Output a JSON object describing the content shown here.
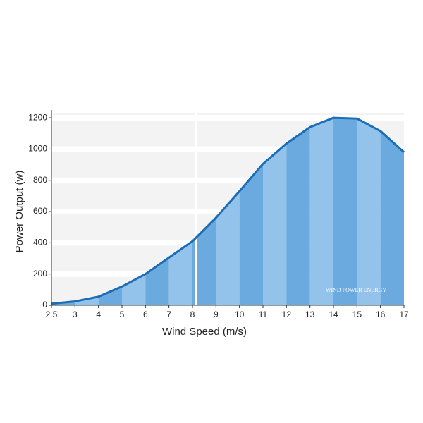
{
  "chart_data": {
    "type": "area",
    "x_label": "Wind Speed (m/s)",
    "y_label": "Power Output (w)",
    "annotation": "WIND POWER ENERGY",
    "categories": [
      "2.5",
      "3",
      "4",
      "5",
      "6",
      "7",
      "8",
      "9",
      "10",
      "11",
      "12",
      "13",
      "14",
      "15",
      "16",
      "17"
    ],
    "values": [
      10,
      25,
      55,
      120,
      200,
      305,
      410,
      560,
      730,
      905,
      1035,
      1140,
      1200,
      1195,
      1115,
      980
    ],
    "color": "#1a6db5",
    "fill_colors": [
      "#6aaade",
      "#93c3ea"
    ],
    "ylim": [
      0,
      1250
    ],
    "yticks": [
      0,
      200,
      400,
      600,
      800,
      1000,
      1200
    ],
    "grid": true
  }
}
